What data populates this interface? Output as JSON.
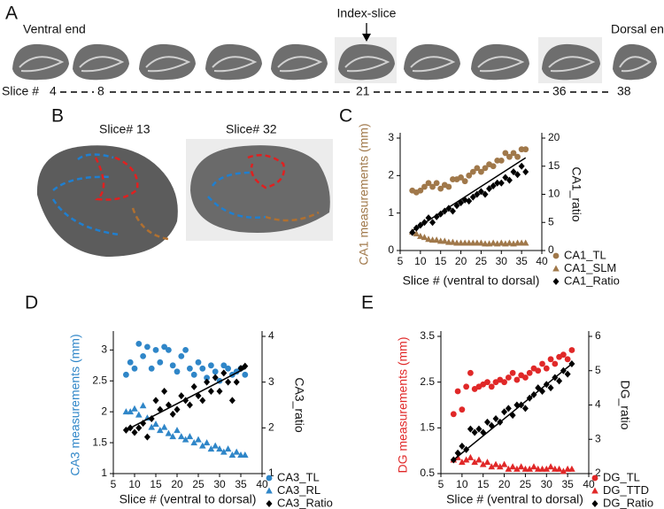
{
  "figure": {
    "panel_labels": [
      "A",
      "B",
      "C",
      "D",
      "E"
    ],
    "panel_a": {
      "ventral_label": "Ventral end",
      "index_label": "Index-slice",
      "dorsal_label": "Dorsal end",
      "slice_label": "Slice #",
      "slice_numbers": [
        "4",
        "8",
        "21",
        "36",
        "38"
      ]
    },
    "panel_b": {
      "slice_titles": [
        "Slice# 13",
        "Slice# 32"
      ]
    }
  },
  "chart_data": [
    {
      "type": "scatter",
      "x_label": "Slice # (ventral to dorsal)",
      "y_label": "CA1 measurements (mm)",
      "y_label_color": "#a0784a",
      "y2_label": "CA1_ratio",
      "xlim": [
        5,
        40
      ],
      "xticks": [
        5,
        10,
        15,
        20,
        25,
        30,
        35,
        40
      ],
      "ylim": [
        0,
        3
      ],
      "yticks": [
        0,
        1,
        2,
        3
      ],
      "y2lim": [
        0,
        20
      ],
      "y2ticks": [
        0,
        5,
        10,
        15,
        20
      ],
      "legend": "outside-lower-right",
      "x": [
        8,
        9,
        10,
        11,
        12,
        13,
        14,
        15,
        16,
        17,
        18,
        19,
        20,
        21,
        22,
        23,
        24,
        25,
        26,
        27,
        28,
        29,
        30,
        31,
        32,
        33,
        34,
        35,
        36
      ],
      "series": [
        {
          "name": "CA1_TL",
          "color": "#a0784a",
          "marker": "circle",
          "axis": "y",
          "values": [
            1.6,
            1.55,
            1.6,
            1.7,
            1.8,
            1.7,
            1.8,
            1.65,
            1.75,
            1.7,
            1.9,
            1.9,
            1.95,
            1.85,
            2.0,
            2.1,
            2.2,
            2.1,
            2.2,
            2.3,
            2.25,
            2.4,
            2.4,
            2.6,
            2.5,
            2.6,
            2.5,
            2.7,
            2.7
          ]
        },
        {
          "name": "CA1_SLM",
          "color": "#a0784a",
          "marker": "triangle",
          "axis": "y",
          "values": [
            0.5,
            0.45,
            0.38,
            0.35,
            0.3,
            0.28,
            0.28,
            0.25,
            0.25,
            0.22,
            0.22,
            0.2,
            0.2,
            0.2,
            0.2,
            0.2,
            0.2,
            0.2,
            0.18,
            0.18,
            0.2,
            0.18,
            0.2,
            0.18,
            0.2,
            0.18,
            0.2,
            0.2,
            0.2
          ]
        },
        {
          "name": "CA1_Ratio",
          "color": "#000000",
          "marker": "diamond",
          "axis": "y2",
          "values": [
            3.2,
            4,
            4.5,
            5,
            5.8,
            5,
            6,
            6.5,
            7,
            7.5,
            7,
            8,
            8.5,
            9,
            8.8,
            9.5,
            10,
            10.5,
            10,
            11,
            11.5,
            12,
            12,
            13,
            12.5,
            14,
            13.5,
            15,
            14
          ]
        }
      ],
      "trend_line": {
        "color": "#000000",
        "axis": "y2",
        "x": [
          8,
          36
        ],
        "values": [
          3.5,
          16.5
        ]
      }
    },
    {
      "type": "scatter",
      "x_label": "Slice # (ventral to dorsal)",
      "y_label": "CA3 measurements (mm)",
      "y_label_color": "#2f86c8",
      "y2_label": "CA3_ratio",
      "xlim": [
        5,
        40
      ],
      "xticks": [
        5,
        10,
        15,
        20,
        25,
        30,
        35,
        40
      ],
      "ylim": [
        1,
        3.22
      ],
      "yticks": [
        1,
        1.5,
        2,
        2.5,
        3
      ],
      "y2lim": [
        1,
        4
      ],
      "y2ticks": [
        1,
        2,
        3,
        4
      ],
      "legend": "outside-lower-right",
      "x": [
        8,
        9,
        10,
        11,
        12,
        13,
        14,
        15,
        16,
        17,
        18,
        19,
        20,
        21,
        22,
        23,
        24,
        25,
        26,
        27,
        28,
        29,
        30,
        31,
        32,
        33,
        34,
        35,
        36
      ],
      "series": [
        {
          "name": "CA3_TL",
          "color": "#2f86c8",
          "marker": "circle",
          "axis": "y",
          "values": [
            2.6,
            2.8,
            2.7,
            3.1,
            2.9,
            3.05,
            2.7,
            3.0,
            2.8,
            3.05,
            3.0,
            2.75,
            2.65,
            2.9,
            3.0,
            2.7,
            2.6,
            2.8,
            2.7,
            2.55,
            2.75,
            2.65,
            2.5,
            2.75,
            2.7,
            2.6,
            2.65,
            2.7,
            2.6
          ]
        },
        {
          "name": "CA3_RL",
          "color": "#2f86c8",
          "marker": "triangle",
          "axis": "y",
          "values": [
            2.0,
            2.0,
            2.05,
            1.95,
            2.1,
            1.9,
            1.75,
            1.8,
            1.7,
            1.75,
            1.65,
            1.6,
            1.7,
            1.6,
            1.55,
            1.6,
            1.5,
            1.55,
            1.45,
            1.5,
            1.4,
            1.45,
            1.4,
            1.35,
            1.4,
            1.3,
            1.35,
            1.3,
            1.3
          ]
        },
        {
          "name": "CA3_Ratio",
          "color": "#000000",
          "marker": "diamond",
          "axis": "y2",
          "values": [
            1.95,
            2.0,
            1.9,
            2.0,
            2.1,
            1.8,
            2.2,
            2.6,
            2.4,
            2.8,
            2.5,
            2.3,
            2.4,
            2.7,
            2.6,
            2.5,
            2.9,
            2.7,
            2.6,
            3.0,
            2.8,
            3.1,
            2.8,
            3.2,
            3.0,
            2.6,
            3.0,
            3.3,
            3.35
          ]
        }
      ],
      "trend_line": {
        "color": "#000000",
        "axis": "y2",
        "x": [
          8,
          36
        ],
        "values": [
          1.95,
          3.3
        ]
      }
    },
    {
      "type": "scatter",
      "x_label": "Slice # (ventral to dorsal)",
      "y_label": "DG measurements (mm)",
      "y_label_color": "#e02828",
      "y2_label": "DG_ratio",
      "xlim": [
        5,
        40
      ],
      "xticks": [
        5,
        10,
        15,
        20,
        25,
        30,
        35,
        40
      ],
      "ylim": [
        0.5,
        3.5
      ],
      "yticks": [
        0.5,
        1.5,
        2.5,
        3.5
      ],
      "y2lim": [
        2,
        6
      ],
      "y2ticks": [
        2,
        3,
        4,
        5,
        6
      ],
      "legend": "outside-lower-right",
      "x": [
        8,
        9,
        10,
        11,
        12,
        13,
        14,
        15,
        16,
        17,
        18,
        19,
        20,
        21,
        22,
        23,
        24,
        25,
        26,
        27,
        28,
        29,
        30,
        31,
        32,
        33,
        34,
        35,
        36
      ],
      "series": [
        {
          "name": "DG_TL",
          "color": "#e02828",
          "marker": "circle",
          "axis": "y",
          "values": [
            1.8,
            2.3,
            1.9,
            2.4,
            2.7,
            2.35,
            2.4,
            2.45,
            2.5,
            2.4,
            2.5,
            2.55,
            2.5,
            2.6,
            2.7,
            2.55,
            2.65,
            2.6,
            2.7,
            2.8,
            2.75,
            2.9,
            2.8,
            3.0,
            2.9,
            3.05,
            3.1,
            3.0,
            3.2
          ]
        },
        {
          "name": "DG_TTD",
          "color": "#e02828",
          "marker": "triangle",
          "axis": "y",
          "values": [
            0.8,
            0.85,
            0.75,
            0.8,
            0.85,
            0.75,
            0.8,
            0.7,
            0.75,
            0.65,
            0.7,
            0.65,
            0.7,
            0.6,
            0.65,
            0.6,
            0.65,
            0.6,
            0.6,
            0.65,
            0.6,
            0.6,
            0.6,
            0.65,
            0.6,
            0.6,
            0.55,
            0.6,
            0.6
          ]
        },
        {
          "name": "DG_Ratio",
          "color": "#000000",
          "marker": "diamond",
          "axis": "y2",
          "values": [
            2.4,
            2.6,
            2.8,
            2.7,
            3.3,
            3.2,
            3.3,
            3.2,
            3.5,
            3.4,
            3.6,
            3.5,
            3.8,
            3.9,
            3.7,
            4.0,
            4.0,
            3.9,
            4.2,
            4.3,
            4.5,
            4.4,
            4.6,
            4.5,
            4.8,
            4.7,
            5.0,
            4.9,
            5.2
          ]
        }
      ],
      "trend_line": {
        "color": "#000000",
        "axis": "y2",
        "x": [
          8,
          36
        ],
        "values": [
          2.4,
          5.2
        ]
      }
    }
  ]
}
